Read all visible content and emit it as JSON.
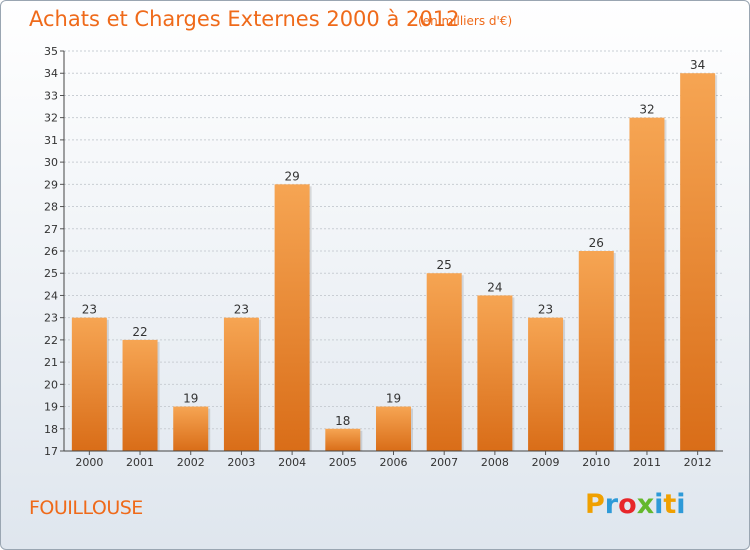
{
  "title": "Achats et Charges Externes 2000 à 2012",
  "subtitle": "(en milliers d'€)",
  "commune": "FOUILLOUSE",
  "brand": {
    "letters": [
      "P",
      "r",
      "o",
      "x",
      "i",
      "t",
      "i"
    ],
    "colors": [
      "#f0a000",
      "#2e9ad8",
      "#e8262a",
      "#64b82c",
      "#2e9ad8",
      "#f0a000",
      "#2e9ad8"
    ]
  },
  "colors": {
    "bar_top": "#f6a553",
    "bar_bottom": "#d96d18",
    "accent": "#ef6a1a"
  },
  "chart_data": {
    "type": "bar",
    "title": "Achats et Charges Externes 2000 à 2012",
    "subtitle": "(en milliers d'€)",
    "categories": [
      "2000",
      "2001",
      "2002",
      "2003",
      "2004",
      "2005",
      "2006",
      "2007",
      "2008",
      "2009",
      "2010",
      "2011",
      "2012"
    ],
    "values": [
      23,
      22,
      19,
      23,
      29,
      18,
      19,
      25,
      24,
      23,
      26,
      32,
      34
    ],
    "ylim": [
      17,
      35
    ],
    "yticks": [
      17,
      18,
      19,
      20,
      21,
      22,
      23,
      24,
      25,
      26,
      27,
      28,
      29,
      30,
      31,
      32,
      33,
      34,
      35
    ],
    "grid": true,
    "xlabel": "",
    "ylabel": ""
  }
}
